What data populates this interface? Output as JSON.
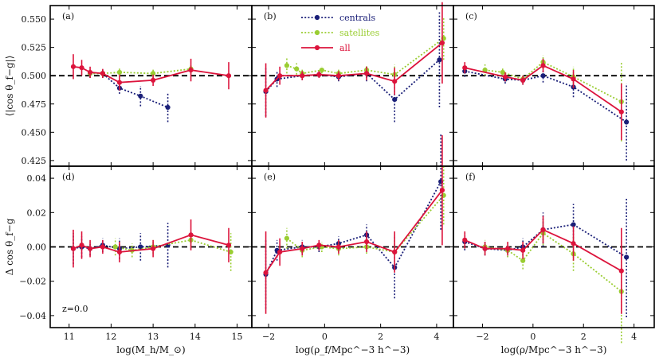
{
  "chart_data": [
    {
      "id": "a",
      "panel_label": "(a)",
      "type": "line",
      "ylim": [
        0.42,
        0.562
      ],
      "yticks": [
        0.425,
        0.45,
        0.475,
        0.5,
        0.525,
        0.55
      ],
      "ytick_labels": [
        "0.425",
        "0.450",
        "0.475",
        "0.500",
        "0.525",
        "0.550"
      ],
      "ylabel": "⟨|cos θ_f−g|⟩",
      "xlim": [
        10.55,
        15.35
      ],
      "xticks": [
        11,
        12,
        13,
        14,
        15
      ],
      "xtick_labels": [
        "11",
        "12",
        "13",
        "14",
        "15"
      ],
      "reference_line": 0.5,
      "series": [
        {
          "name": "centrals",
          "x": [
            11.5,
            11.8,
            12.2,
            12.7,
            13.35
          ],
          "y": [
            0.502,
            0.502,
            0.489,
            0.482,
            0.472
          ],
          "err": [
            0.004,
            0.004,
            0.005,
            0.009,
            0.013
          ]
        },
        {
          "name": "satellites",
          "x": [
            11.5,
            11.8,
            12.2,
            13.0,
            13.9
          ],
          "y": [
            0.502,
            0.502,
            0.503,
            0.502,
            0.506
          ],
          "err": [
            0.003,
            0.003,
            0.004,
            0.004,
            0.004
          ]
        },
        {
          "name": "all",
          "x": [
            11.1,
            11.3,
            11.5,
            11.8,
            12.2,
            13.0,
            13.9,
            14.8
          ],
          "y": [
            0.508,
            0.507,
            0.503,
            0.502,
            0.494,
            0.496,
            0.505,
            0.5
          ],
          "err": [
            0.011,
            0.007,
            0.005,
            0.004,
            0.007,
            0.005,
            0.01,
            0.012
          ]
        }
      ]
    },
    {
      "id": "b",
      "panel_label": "(b)",
      "type": "line",
      "ylim": [
        0.42,
        0.562
      ],
      "xlim": [
        -2.6,
        4.6
      ],
      "xticks": [
        -2,
        0,
        2,
        4
      ],
      "xtick_labels": [
        "−2",
        "0",
        "2",
        "4"
      ],
      "reference_line": 0.5,
      "series": [
        {
          "name": "centrals",
          "x": [
            -2.1,
            -1.7,
            -0.8,
            -0.2,
            0.5,
            1.5,
            2.5,
            4.1
          ],
          "y": [
            0.486,
            0.497,
            0.5,
            0.501,
            0.499,
            0.502,
            0.479,
            0.514
          ],
          "err": [
            0.022,
            0.007,
            0.004,
            0.003,
            0.004,
            0.007,
            0.02,
            0.042
          ]
        },
        {
          "name": "satellites",
          "x": [
            -1.35,
            -1.0,
            -0.8,
            -0.1,
            0.5,
            1.5,
            2.5,
            4.25
          ],
          "y": [
            0.509,
            0.506,
            0.502,
            0.505,
            0.502,
            0.505,
            0.501,
            0.533
          ],
          "err": [
            0.007,
            0.005,
            0.004,
            0.003,
            0.004,
            0.004,
            0.009,
            0.019
          ]
        },
        {
          "name": "all",
          "x": [
            -2.1,
            -1.6,
            -0.8,
            -0.2,
            0.5,
            1.5,
            2.5,
            4.2
          ],
          "y": [
            0.487,
            0.5,
            0.5,
            0.501,
            0.5,
            0.502,
            0.495,
            0.529
          ],
          "err": [
            0.024,
            0.008,
            0.004,
            0.003,
            0.004,
            0.006,
            0.012,
            0.036
          ]
        }
      ]
    },
    {
      "id": "c",
      "panel_label": "(c)",
      "type": "line",
      "ylim": [
        0.42,
        0.562
      ],
      "xlim": [
        -3.15,
        4.8
      ],
      "xticks": [
        -2,
        0,
        2,
        4
      ],
      "xtick_labels": [
        "−2",
        "0",
        "2",
        "4"
      ],
      "reference_line": 0.5,
      "series": [
        {
          "name": "centrals",
          "x": [
            -2.7,
            -1.1,
            -0.4,
            0.4,
            1.6,
            3.7
          ],
          "y": [
            0.504,
            0.497,
            0.496,
            0.5,
            0.49,
            0.459
          ],
          "err": [
            0.005,
            0.004,
            0.004,
            0.006,
            0.009,
            0.034
          ]
        },
        {
          "name": "satellites",
          "x": [
            -1.9,
            -1.2,
            -0.4,
            0.4,
            1.6,
            3.5
          ],
          "y": [
            0.505,
            0.503,
            0.497,
            0.512,
            0.499,
            0.477
          ],
          "err": [
            0.005,
            0.004,
            0.004,
            0.006,
            0.009,
            0.035
          ]
        },
        {
          "name": "all",
          "x": [
            -2.7,
            -1.1,
            -0.4,
            0.4,
            1.6,
            3.5
          ],
          "y": [
            0.507,
            0.499,
            0.496,
            0.509,
            0.497,
            0.468
          ],
          "err": [
            0.005,
            0.004,
            0.004,
            0.006,
            0.008,
            0.025
          ]
        }
      ]
    },
    {
      "id": "d",
      "panel_label": "(d)",
      "type": "line",
      "ylim": [
        -0.047,
        0.047
      ],
      "yticks": [
        -0.04,
        -0.02,
        0.0,
        0.02,
        0.04
      ],
      "ytick_labels": [
        "−0.04",
        "−0.02",
        "0.00",
        "0.02",
        "0.04"
      ],
      "ylabel": "Δ cos θ_f−g",
      "xlabel": "log(M_h/M_⊙)",
      "xlim": [
        10.55,
        15.35
      ],
      "xticks": [
        11,
        12,
        13,
        14,
        15
      ],
      "xtick_labels": [
        "11",
        "12",
        "13",
        "14",
        "15"
      ],
      "reference_line": 0.0,
      "annotation": "z=0.0",
      "series": [
        {
          "name": "centrals",
          "x": [
            11.1,
            11.3,
            11.5,
            11.8,
            12.2,
            12.7,
            13.35
          ],
          "y": [
            -0.001,
            0.0,
            -0.001,
            0.001,
            -0.001,
            0.0,
            0.001
          ],
          "err": [
            0.009,
            0.006,
            0.004,
            0.004,
            0.006,
            0.008,
            0.013
          ]
        },
        {
          "name": "satellites",
          "x": [
            12.1,
            12.5,
            13.0,
            13.9,
            14.85
          ],
          "y": [
            0.0,
            -0.002,
            0.0,
            0.004,
            -0.003
          ],
          "err": [
            0.005,
            0.004,
            0.004,
            0.004,
            0.011
          ]
        },
        {
          "name": "all",
          "x": [
            11.1,
            11.3,
            11.5,
            11.8,
            12.2,
            13.0,
            13.9,
            14.8
          ],
          "y": [
            -0.001,
            0.001,
            -0.001,
            0.0,
            -0.003,
            -0.001,
            0.007,
            0.001
          ],
          "err": [
            0.011,
            0.008,
            0.005,
            0.004,
            0.006,
            0.005,
            0.009,
            0.01
          ]
        }
      ]
    },
    {
      "id": "e",
      "panel_label": "(e)",
      "type": "line",
      "ylim": [
        -0.047,
        0.047
      ],
      "xlim": [
        -2.6,
        4.6
      ],
      "xticks": [
        -2,
        0,
        2,
        4
      ],
      "xtick_labels": [
        "−2",
        "0",
        "2",
        "4"
      ],
      "xlabel": "log(ρ_f/Mpc^−3 h^−3)",
      "reference_line": 0.0,
      "series": [
        {
          "name": "centrals",
          "x": [
            -2.1,
            -1.7,
            -0.8,
            -0.2,
            0.5,
            1.5,
            2.5,
            4.15
          ],
          "y": [
            -0.016,
            -0.002,
            0.0,
            0.0,
            0.002,
            0.007,
            -0.012,
            0.038
          ],
          "err": [
            0.02,
            0.006,
            0.004,
            0.003,
            0.004,
            0.006,
            0.018,
            0.028
          ]
        },
        {
          "name": "satellites",
          "x": [
            -1.35,
            -0.8,
            -0.1,
            0.5,
            1.5,
            2.5,
            4.25
          ],
          "y": [
            0.005,
            -0.002,
            0.0,
            -0.001,
            0.0,
            -0.003,
            0.03
          ],
          "err": [
            0.006,
            0.004,
            0.003,
            0.004,
            0.004,
            0.01,
            0.017
          ]
        },
        {
          "name": "all",
          "x": [
            -2.1,
            -1.6,
            -0.8,
            -0.2,
            0.5,
            1.5,
            2.5,
            4.2
          ],
          "y": [
            -0.015,
            -0.003,
            -0.001,
            0.001,
            0.0,
            0.003,
            -0.003,
            0.033
          ],
          "err": [
            0.024,
            0.008,
            0.004,
            0.003,
            0.004,
            0.006,
            0.012,
            0.032
          ]
        }
      ]
    },
    {
      "id": "f",
      "panel_label": "(f)",
      "type": "line",
      "ylim": [
        -0.047,
        0.047
      ],
      "xlim": [
        -3.15,
        4.8
      ],
      "xticks": [
        -2,
        0,
        2,
        4
      ],
      "xtick_labels": [
        "−2",
        "0",
        "2",
        "4"
      ],
      "xlabel": "log(ρ/Mpc^−3 h^−3)",
      "reference_line": 0.0,
      "series": [
        {
          "name": "centrals",
          "x": [
            -2.7,
            -1.9,
            -1.0,
            -0.4,
            0.4,
            1.6,
            3.7
          ],
          "y": [
            0.003,
            -0.001,
            -0.002,
            0.0,
            0.01,
            0.013,
            -0.006
          ],
          "err": [
            0.005,
            0.004,
            0.004,
            0.005,
            0.01,
            0.012,
            0.035
          ]
        },
        {
          "name": "satellites",
          "x": [
            -1.9,
            -1.0,
            -0.4,
            0.4,
            1.6,
            3.5
          ],
          "y": [
            0.0,
            -0.002,
            -0.008,
            0.008,
            -0.004,
            -0.026
          ],
          "err": [
            0.004,
            0.004,
            0.005,
            0.007,
            0.01,
            0.03
          ]
        },
        {
          "name": "all",
          "x": [
            -2.7,
            -1.9,
            -1.0,
            -0.4,
            0.4,
            1.6,
            3.5
          ],
          "y": [
            0.004,
            -0.001,
            -0.001,
            -0.002,
            0.01,
            0.002,
            -0.014
          ],
          "err": [
            0.005,
            0.004,
            0.004,
            0.005,
            0.008,
            0.01,
            0.025
          ]
        }
      ]
    }
  ],
  "legend": {
    "location": "top-center of panel (b)",
    "entries": [
      {
        "name": "centrals",
        "color": "#1a1f78",
        "style": "dotted"
      },
      {
        "name": "satellites",
        "color": "#9acd32",
        "style": "dotted"
      },
      {
        "name": "all",
        "color": "#dc143c",
        "style": "solid"
      }
    ]
  },
  "colors": {
    "centrals": "#1a1f78",
    "satellites": "#9acd32",
    "all": "#dc143c"
  }
}
